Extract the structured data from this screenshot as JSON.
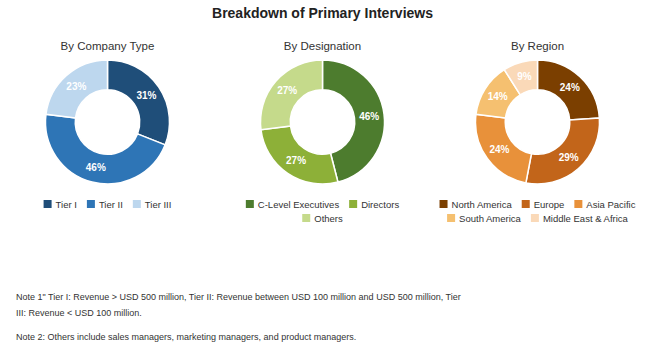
{
  "title": "Breakdown of Primary Interviews",
  "chart_data": [
    {
      "type": "donut",
      "title": "By Company Type",
      "categories": [
        "Tier I",
        "Tier II",
        "Tier III"
      ],
      "values": [
        31,
        46,
        23
      ],
      "value_labels": [
        "31%",
        "46%",
        "23%"
      ],
      "data_labels": true,
      "colors": [
        "#1F4E79",
        "#2E75B6",
        "#BDD7EE"
      ]
    },
    {
      "type": "donut",
      "title": "By Designation",
      "categories": [
        "C-Level Executives",
        "Directors",
        "Others"
      ],
      "values": [
        46,
        27,
        27
      ],
      "value_labels": [
        "46%",
        "27%",
        "27%"
      ],
      "data_labels": true,
      "colors": [
        "#4D7C2E",
        "#8DB038",
        "#C5DA8B"
      ]
    },
    {
      "type": "donut",
      "title": "By Region",
      "categories": [
        "North America",
        "Europe",
        "Asia Pacific",
        "South America",
        "Middle East & Africa"
      ],
      "values": [
        24,
        29,
        24,
        14,
        9
      ],
      "value_labels": [
        "24%",
        "29%",
        "24%",
        "14%",
        "9%"
      ],
      "data_labels": true,
      "colors": [
        "#7B3F00",
        "#C2651A",
        "#E8913A",
        "#F5C070",
        "#FAD9B8"
      ]
    }
  ],
  "annotations": [
    "Note 1\" Tier I: Revenue > USD 500 million, Tier II: Revenue between USD 100 million and USD 500 million, Tier",
    "III: Revenue < USD 100 million.",
    "Note 2: Others include sales managers, marketing managers, and product managers."
  ]
}
